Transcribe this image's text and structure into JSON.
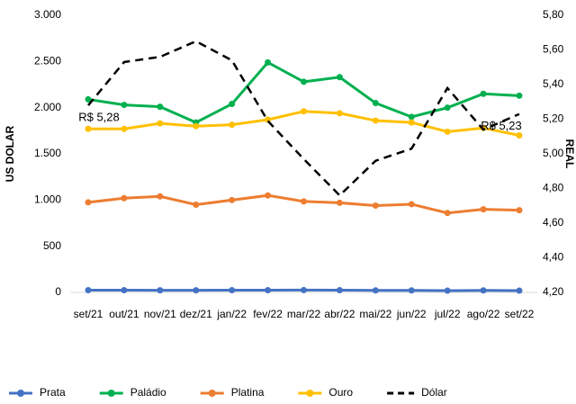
{
  "chart_data": {
    "type": "line",
    "y_label": "US DOLAR",
    "y2_label": "REAL",
    "categories": [
      "set/21",
      "out/21",
      "nov/21",
      "dez/21",
      "jan/22",
      "fev/22",
      "mar/22",
      "abr/22",
      "mai/22",
      "jun/22",
      "jul/22",
      "ago/22",
      "set/22"
    ],
    "series": [
      {
        "name": "Prata",
        "color": "#4472c4",
        "values": [
          24,
          24,
          23,
          23,
          24,
          24,
          25,
          24,
          22,
          22,
          19,
          22,
          19
        ]
      },
      {
        "name": "Paládio",
        "color": "#00b050",
        "values": [
          2090,
          2030,
          2010,
          1840,
          2040,
          2490,
          2280,
          2330,
          2050,
          1900,
          2000,
          2150,
          2130
        ]
      },
      {
        "name": "Platina",
        "color": "#ed7d31",
        "values": [
          975,
          1020,
          1040,
          950,
          1000,
          1050,
          985,
          970,
          940,
          955,
          860,
          900,
          890
        ]
      },
      {
        "name": "Ouro",
        "color": "#ffc000",
        "values": [
          1770,
          1770,
          1830,
          1800,
          1815,
          1870,
          1960,
          1940,
          1860,
          1840,
          1740,
          1780,
          1700
        ]
      },
      {
        "name": "Dólar",
        "color": "#000000",
        "axis": "y2",
        "dashed": true,
        "values": [
          5.28,
          5.53,
          5.56,
          5.65,
          5.54,
          5.19,
          4.97,
          4.76,
          4.96,
          5.03,
          5.38,
          5.14,
          5.23
        ],
        "value_labels": [
          "R$ 5,28",
          null,
          null,
          null,
          null,
          null,
          null,
          null,
          null,
          null,
          null,
          null,
          "R$ 5,23"
        ]
      }
    ],
    "ylim": [
      0,
      3000
    ],
    "yticks": [
      {
        "value": 0,
        "label": "0"
      },
      {
        "value": 500,
        "label": "500"
      },
      {
        "value": 1000,
        "label": "1.000"
      },
      {
        "value": 1500,
        "label": "1.500"
      },
      {
        "value": 2000,
        "label": "2.000"
      },
      {
        "value": 2500,
        "label": "2.500"
      },
      {
        "value": 3000,
        "label": "3.000"
      }
    ],
    "y2lim": [
      4.2,
      5.8
    ],
    "y2ticks": [
      {
        "value": 4.2,
        "label": "4,20"
      },
      {
        "value": 4.4,
        "label": "4,40"
      },
      {
        "value": 4.6,
        "label": "4,60"
      },
      {
        "value": 4.8,
        "label": "4,80"
      },
      {
        "value": 5.0,
        "label": "5,00"
      },
      {
        "value": 5.2,
        "label": "5,20"
      },
      {
        "value": 5.4,
        "label": "5,40"
      },
      {
        "value": 5.6,
        "label": "5,60"
      },
      {
        "value": 5.8,
        "label": "5,80"
      }
    ],
    "legend": "bottom"
  }
}
